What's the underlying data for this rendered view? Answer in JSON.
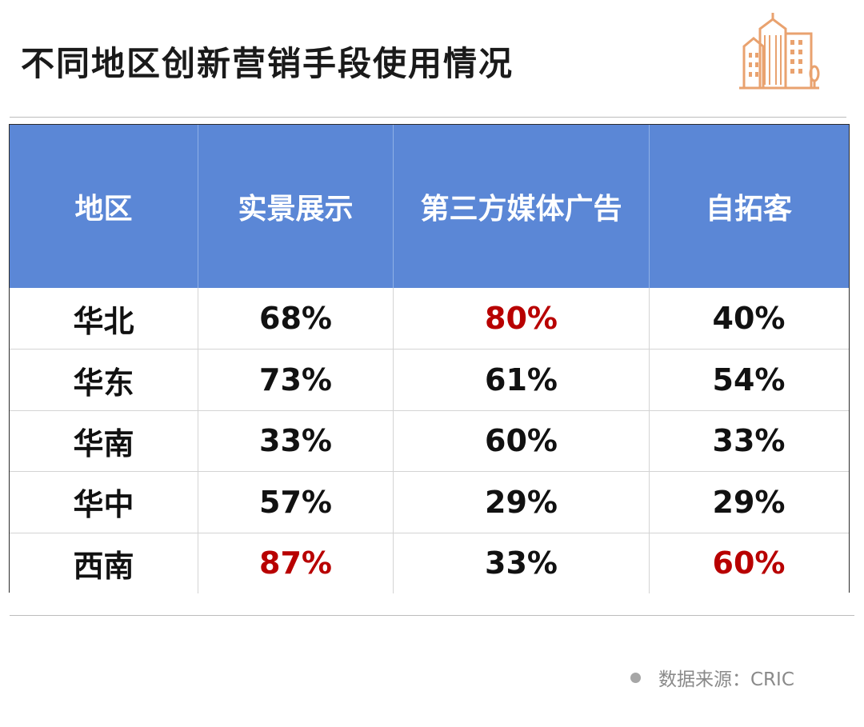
{
  "title": "不同地区创新营销手段使用情况",
  "colors": {
    "header_bg": "#5b87d6",
    "highlight": "#b80000",
    "icon": "#e9a26f"
  },
  "logo_icon": "city-buildings-icon",
  "table": {
    "headers": [
      "地区",
      "实景展示",
      "第三方媒体广告",
      "自拓客"
    ],
    "rows": [
      {
        "region": "华北",
        "values": [
          "68%",
          "80%",
          "40%"
        ],
        "highlight": [
          false,
          true,
          false
        ]
      },
      {
        "region": "华东",
        "values": [
          "73%",
          "61%",
          "54%"
        ],
        "highlight": [
          false,
          false,
          false
        ]
      },
      {
        "region": "华南",
        "values": [
          "33%",
          "60%",
          "33%"
        ],
        "highlight": [
          false,
          false,
          false
        ]
      },
      {
        "region": "华中",
        "values": [
          "57%",
          "29%",
          "29%"
        ],
        "highlight": [
          false,
          false,
          false
        ]
      },
      {
        "region": "西南",
        "values": [
          "87%",
          "33%",
          "60%"
        ],
        "highlight": [
          true,
          false,
          true
        ]
      }
    ]
  },
  "source": "数据来源：CRIC"
}
